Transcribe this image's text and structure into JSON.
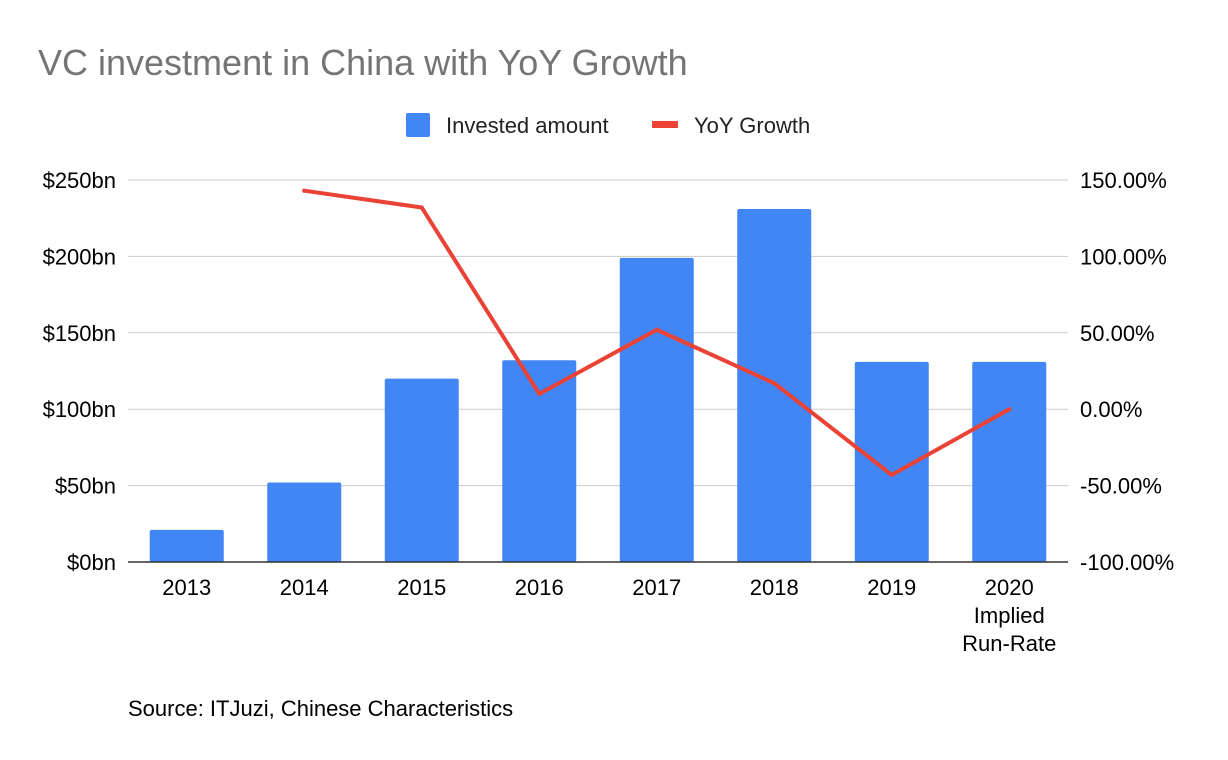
{
  "chart_data": {
    "type": "bar",
    "title": "VC investment in China with YoY Growth",
    "categories": [
      [
        "2013"
      ],
      [
        "2014"
      ],
      [
        "2015"
      ],
      [
        "2016"
      ],
      [
        "2017"
      ],
      [
        "2018"
      ],
      [
        "2019"
      ],
      [
        "2020",
        "Implied",
        "Run-Rate"
      ]
    ],
    "series": [
      {
        "name": "Invested amount",
        "type": "bar",
        "axis": "left",
        "color": "#4285f4",
        "values": [
          21,
          52,
          120,
          132,
          199,
          231,
          131,
          131
        ]
      },
      {
        "name": "YoY Growth",
        "type": "line",
        "axis": "right",
        "color": "#ea4335",
        "values": [
          null,
          143,
          132,
          10,
          52,
          17,
          -43,
          0
        ]
      }
    ],
    "y_left": {
      "ylim": [
        0,
        250
      ],
      "ticks": [
        0,
        50,
        100,
        150,
        200,
        250
      ],
      "tick_labels": [
        "$0bn",
        "$50bn",
        "$100bn",
        "$150bn",
        "$200bn",
        "$250bn"
      ]
    },
    "y_right": {
      "ylim": [
        -100,
        150
      ],
      "ticks": [
        -100,
        -50,
        0,
        50,
        100,
        150
      ],
      "tick_labels": [
        "-100.00%",
        "-50.00%",
        "0.00%",
        "50.00%",
        "100.00%",
        "150.00%"
      ]
    },
    "legend": {
      "position": "top-center"
    },
    "grid": true,
    "source": "Source: ITJuzi, Chinese Characteristics"
  }
}
